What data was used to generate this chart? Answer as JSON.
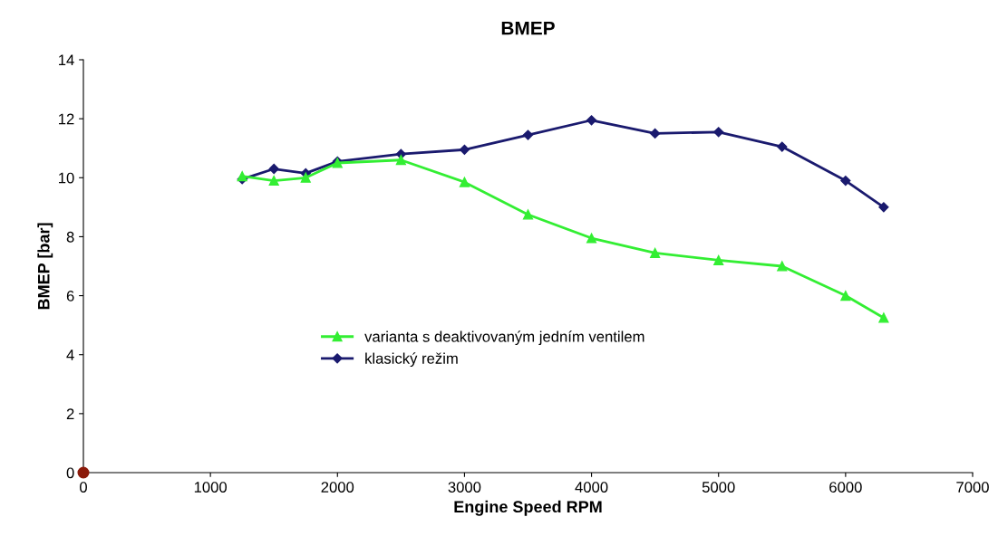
{
  "chart_data": {
    "type": "line",
    "title": "BMEP",
    "xlabel": "Engine Speed RPM",
    "ylabel": "BMEP [bar]",
    "xlim": [
      0,
      7000
    ],
    "xticks": [
      0,
      1000,
      2000,
      3000,
      4000,
      5000,
      6000,
      7000
    ],
    "ylim": [
      0,
      14
    ],
    "yticks": [
      0,
      2,
      4,
      6,
      8,
      10,
      12,
      14
    ],
    "grid": false,
    "legend": "center",
    "series": [
      {
        "name": "varianta s deaktivovaným jedním ventilem",
        "color": "#33ee33",
        "marker": "triangle",
        "x": [
          1250,
          1500,
          1750,
          2000,
          2500,
          3000,
          3500,
          4000,
          4500,
          5000,
          5500,
          6000,
          6300
        ],
        "values": [
          10.05,
          9.9,
          10.0,
          10.5,
          10.6,
          9.85,
          8.75,
          7.95,
          7.45,
          7.2,
          7.0,
          6.0,
          5.25
        ]
      },
      {
        "name": "klasický režim",
        "color": "#1a1a6e",
        "marker": "diamond",
        "x": [
          1250,
          1500,
          1750,
          2000,
          2500,
          3000,
          3500,
          4000,
          4500,
          5000,
          5500,
          6000,
          6300
        ],
        "values": [
          9.95,
          10.3,
          10.15,
          10.55,
          10.8,
          10.95,
          11.45,
          11.95,
          11.5,
          11.55,
          11.05,
          9.9,
          9.0
        ]
      },
      {
        "type": "scatter",
        "color": "#8b1a0a",
        "marker": "circle",
        "x": [
          0
        ],
        "values": [
          0
        ]
      }
    ]
  }
}
